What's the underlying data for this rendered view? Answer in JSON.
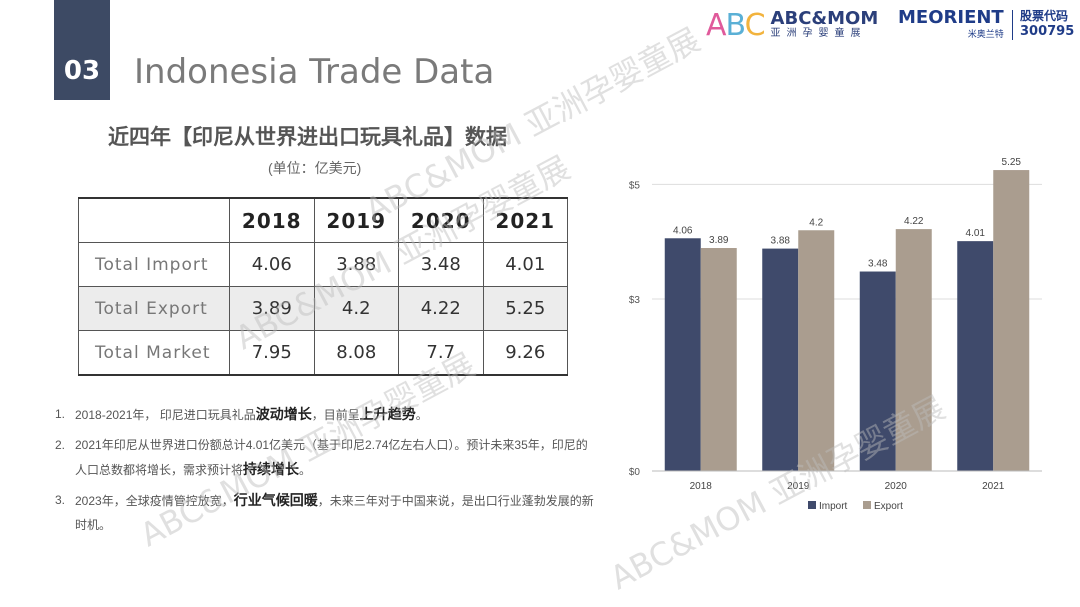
{
  "header": {
    "section_number": "03",
    "title": "Indonesia Trade Data",
    "logo_abc_letters": [
      "A",
      "B",
      "C"
    ],
    "logo_abc_brand": "ABC&MOM",
    "logo_abc_sub": "亚洲孕婴童展",
    "logo_meorient": "MEORIENT",
    "logo_meorient_sub": "米奥兰特",
    "stock_label": "股票代码",
    "stock_code": "300795"
  },
  "table": {
    "title": "近四年【印尼从世界进出口玩具礼品】数据",
    "unit": "(单位：亿美元)",
    "years": [
      "2018",
      "2019",
      "2020",
      "2021"
    ],
    "rows": [
      {
        "label": "Total Import",
        "values": [
          "4.06",
          "3.88",
          "3.48",
          "4.01"
        ]
      },
      {
        "label": "Total Export",
        "values": [
          "3.89",
          "4.2",
          "4.22",
          "5.25"
        ]
      },
      {
        "label": "Total Market",
        "values": [
          "7.95",
          "8.08",
          "7.7",
          "9.26"
        ]
      }
    ]
  },
  "notes": [
    {
      "num": "1.",
      "parts": [
        {
          "t": "2018-2021年，  印尼进口玩具礼品"
        },
        {
          "t": "波动增长",
          "b": true
        },
        {
          "t": "，目前呈"
        },
        {
          "t": "上升趋势",
          "b": true
        },
        {
          "t": "。"
        }
      ]
    },
    {
      "num": "2.",
      "parts": [
        {
          "t": "2021年印尼从世界进口份额总计4.01亿美元（基于印尼2.74亿左右人口）。预计未来35年，印尼的人口总数都将增长，需求预计将"
        },
        {
          "t": "持续增长",
          "b": true
        },
        {
          "t": "。"
        }
      ]
    },
    {
      "num": "3.",
      "parts": [
        {
          "t": "2023年，全球疫情管控放宽，"
        },
        {
          "t": "行业气候回暖",
          "b": true
        },
        {
          "t": "，未来三年对于中国来说，是出口行业蓬勃发展的新时机。"
        }
      ]
    }
  ],
  "watermark_text": "ABC&MOM 亚洲孕婴童展",
  "chart_data": {
    "type": "bar",
    "categories": [
      "2018",
      "2019",
      "2020",
      "2021"
    ],
    "series": [
      {
        "name": "Import",
        "values": [
          4.06,
          3.88,
          3.48,
          4.01
        ],
        "color": "#3f4a6b"
      },
      {
        "name": "Export",
        "values": [
          3.89,
          4.2,
          4.22,
          5.25
        ],
        "color": "#aa9d8f"
      }
    ],
    "y_ticks": [
      0,
      3,
      5
    ],
    "y_tick_labels": [
      "$0",
      "$3",
      "$5"
    ],
    "ylim": [
      0,
      5.6
    ],
    "grid": true,
    "legend": "bottom",
    "data_labels": true
  }
}
